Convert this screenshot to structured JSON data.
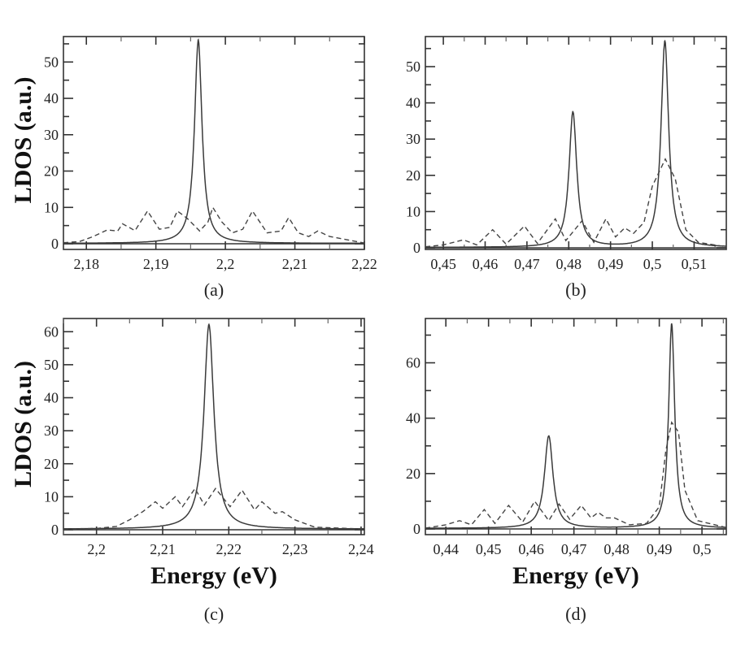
{
  "chart_data": [
    {
      "id": "a",
      "type": "line",
      "caption": "(a)",
      "xlabel": "",
      "ylabel": "LDOS (a.u.)",
      "xlim": [
        2.1767,
        2.22
      ],
      "ylim": [
        0,
        57
      ],
      "xticks": [
        2.18,
        2.19,
        2.2,
        2.21,
        2.22
      ],
      "xtick_labels": [
        "2,18",
        "2,19",
        "2,2",
        "2,21",
        "2,22"
      ],
      "xminor_step": 0.005,
      "yticks": [
        0,
        10,
        20,
        30,
        40,
        50
      ],
      "ytick_labels": [
        "0",
        "10",
        "20",
        "30",
        "40",
        "50"
      ],
      "yminor_step": 5,
      "grid": false,
      "series": [
        {
          "name": "solid",
          "style": "solid",
          "peaks": [
            {
              "x": 2.1961,
              "h": 56,
              "w": 0.00065
            }
          ],
          "baseline": 0.1
        },
        {
          "name": "dashed",
          "style": "dashed",
          "x": [
            2.1767,
            2.179,
            2.181,
            2.183,
            2.1845,
            2.1852,
            2.187,
            2.1888,
            2.1905,
            2.192,
            2.1931,
            2.1945,
            2.1963,
            2.1975,
            2.1982,
            2.1995,
            2.201,
            2.2025,
            2.2039,
            2.206,
            2.208,
            2.2091,
            2.2105,
            2.212,
            2.2133,
            2.215,
            2.217,
            2.22
          ],
          "y": [
            0.3,
            0.6,
            2,
            3.8,
            3.5,
            5.5,
            3.6,
            9,
            4,
            4.5,
            9,
            7,
            3.5,
            6,
            10,
            6,
            3,
            4,
            9,
            3,
            3.5,
            7.2,
            3,
            2,
            3.5,
            2,
            1.3,
            0.2
          ]
        }
      ]
    },
    {
      "id": "b",
      "type": "line",
      "caption": "(b)",
      "xlabel": "",
      "ylabel": "",
      "xlim": [
        0.4457,
        0.5177
      ],
      "ylim": [
        0,
        58.3
      ],
      "xticks": [
        0.45,
        0.46,
        0.47,
        0.48,
        0.49,
        0.5,
        0.51
      ],
      "xtick_labels": [
        "0,45",
        "0,46",
        "0,47",
        "0,48",
        "0,49",
        "0,5",
        "0,51"
      ],
      "xminor_step": 0.005,
      "yticks": [
        0,
        10,
        20,
        30,
        40,
        50
      ],
      "ytick_labels": [
        "0",
        "10",
        "20",
        "30",
        "40",
        "50"
      ],
      "yminor_step": 5,
      "grid": false,
      "series": [
        {
          "name": "solid",
          "style": "solid",
          "peaks": [
            {
              "x": 0.481,
              "h": 37.5,
              "w": 0.0011
            },
            {
              "x": 0.503,
              "h": 57,
              "w": 0.0011
            }
          ],
          "baseline": 0.1
        },
        {
          "name": "dashed",
          "style": "dashed",
          "x": [
            0.4457,
            0.45,
            0.4548,
            0.458,
            0.4618,
            0.465,
            0.4694,
            0.4725,
            0.4768,
            0.4793,
            0.4832,
            0.486,
            0.4889,
            0.4912,
            0.4934,
            0.4955,
            0.498,
            0.5,
            0.5031,
            0.5055,
            0.508,
            0.511,
            0.5177
          ],
          "y": [
            0.3,
            0.8,
            2.2,
            0.8,
            5,
            1,
            6,
            1.2,
            8,
            2,
            7.5,
            1.5,
            8,
            3,
            5.5,
            4,
            7,
            17,
            24.5,
            19,
            5,
            1.5,
            0.3
          ]
        }
      ]
    },
    {
      "id": "c",
      "type": "line",
      "caption": "(c)",
      "xlabel": "Energy (eV)",
      "ylabel": "LDOS (a.u.)",
      "xlim": [
        2.195,
        2.2405
      ],
      "ylim": [
        0,
        64
      ],
      "xticks": [
        2.2,
        2.21,
        2.22,
        2.23,
        2.24
      ],
      "xtick_labels": [
        "2,2",
        "2,21",
        "2,22",
        "2,23",
        "2,24"
      ],
      "xminor_step": 0.005,
      "yticks": [
        0,
        10,
        20,
        30,
        40,
        50,
        60
      ],
      "ytick_labels": [
        "0",
        "10",
        "20",
        "30",
        "40",
        "50",
        "60"
      ],
      "yminor_step": 5,
      "grid": false,
      "series": [
        {
          "name": "solid",
          "style": "solid",
          "peaks": [
            {
              "x": 2.217,
              "h": 62,
              "w": 0.0009
            }
          ],
          "baseline": 0.2
        },
        {
          "name": "dashed",
          "style": "dashed",
          "x": [
            2.195,
            2.2,
            2.203,
            2.205,
            2.207,
            2.2089,
            2.21,
            2.2119,
            2.213,
            2.2149,
            2.2163,
            2.218,
            2.2202,
            2.222,
            2.2239,
            2.225,
            2.227,
            2.2281,
            2.23,
            2.233,
            2.2405
          ],
          "y": [
            0.2,
            0.4,
            1,
            3,
            5.5,
            8.5,
            6.5,
            10,
            7,
            12.5,
            7.5,
            12.5,
            7,
            12,
            6,
            8.5,
            5,
            5.5,
            3,
            0.8,
            0.2
          ]
        }
      ]
    },
    {
      "id": "d",
      "type": "line",
      "caption": "(d)",
      "xlabel": "Energy (eV)",
      "ylabel": "",
      "xlim": [
        0.4352,
        0.5057
      ],
      "ylim": [
        0,
        76
      ],
      "xticks": [
        0.44,
        0.45,
        0.46,
        0.47,
        0.48,
        0.49,
        0.5
      ],
      "xtick_labels": [
        "0,44",
        "0,45",
        "0,46",
        "0,47",
        "0,48",
        "0,49",
        "0,5"
      ],
      "xminor_step": 0.005,
      "yticks": [
        0,
        20,
        40,
        60
      ],
      "ytick_labels": [
        "0",
        "20",
        "40",
        "60"
      ],
      "yminor_step": 10,
      "grid": false,
      "series": [
        {
          "name": "solid",
          "style": "solid",
          "peaks": [
            {
              "x": 0.4641,
              "h": 33.5,
              "w": 0.0012
            },
            {
              "x": 0.4929,
              "h": 74,
              "w": 0.00085
            }
          ],
          "baseline": 0.2
        },
        {
          "name": "dashed",
          "style": "dashed",
          "x": [
            0.4352,
            0.44,
            0.4432,
            0.446,
            0.449,
            0.4515,
            0.4547,
            0.458,
            0.4608,
            0.4641,
            0.4665,
            0.469,
            0.4717,
            0.474,
            0.4757,
            0.4775,
            0.4795,
            0.483,
            0.487,
            0.49,
            0.4915,
            0.4929,
            0.4945,
            0.496,
            0.499,
            0.5057
          ],
          "y": [
            0.3,
            1.5,
            3,
            1.5,
            7,
            2,
            8.5,
            2.5,
            10,
            3,
            9,
            3.5,
            8.5,
            4,
            6,
            4,
            4,
            1.5,
            2,
            8,
            28,
            38.5,
            35,
            14,
            3,
            0.5
          ]
        }
      ]
    }
  ]
}
